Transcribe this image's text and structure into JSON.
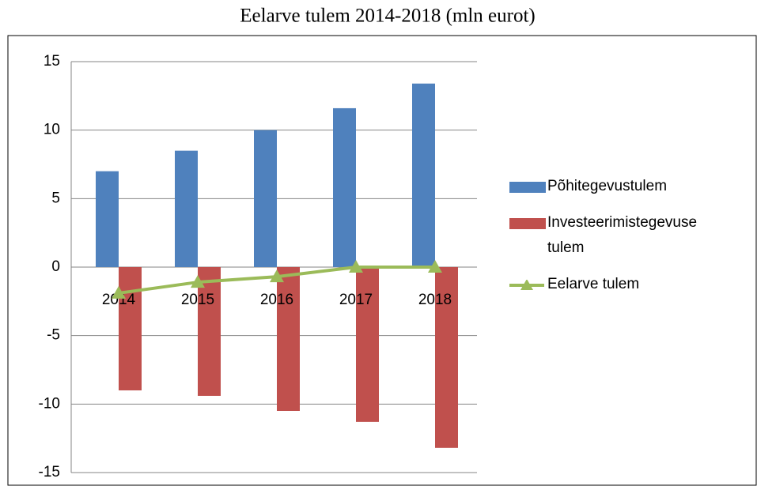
{
  "chart_data": {
    "type": "bar",
    "title": "Eelarve tulem 2014-2018 (mln eurot)",
    "categories": [
      "2014",
      "2015",
      "2016",
      "2017",
      "2018"
    ],
    "series": [
      {
        "name": "Põhitegevustulem",
        "type": "bar",
        "color": "#4f81bd",
        "values": [
          7.0,
          8.5,
          10.0,
          11.6,
          13.4
        ]
      },
      {
        "name": "Investeerimistegevuse tulem",
        "type": "bar",
        "color": "#c0504d",
        "values": [
          -9.0,
          -9.4,
          -10.5,
          -11.3,
          -13.2
        ]
      },
      {
        "name": "Eelarve tulem",
        "type": "line",
        "color": "#9bbb59",
        "values": [
          -1.9,
          -1.1,
          -0.7,
          0,
          0
        ]
      }
    ],
    "ylim": [
      -15,
      15
    ],
    "yticks": [
      -15,
      -10,
      -5,
      0,
      5,
      10,
      15
    ],
    "grid": true,
    "legend": "right"
  }
}
